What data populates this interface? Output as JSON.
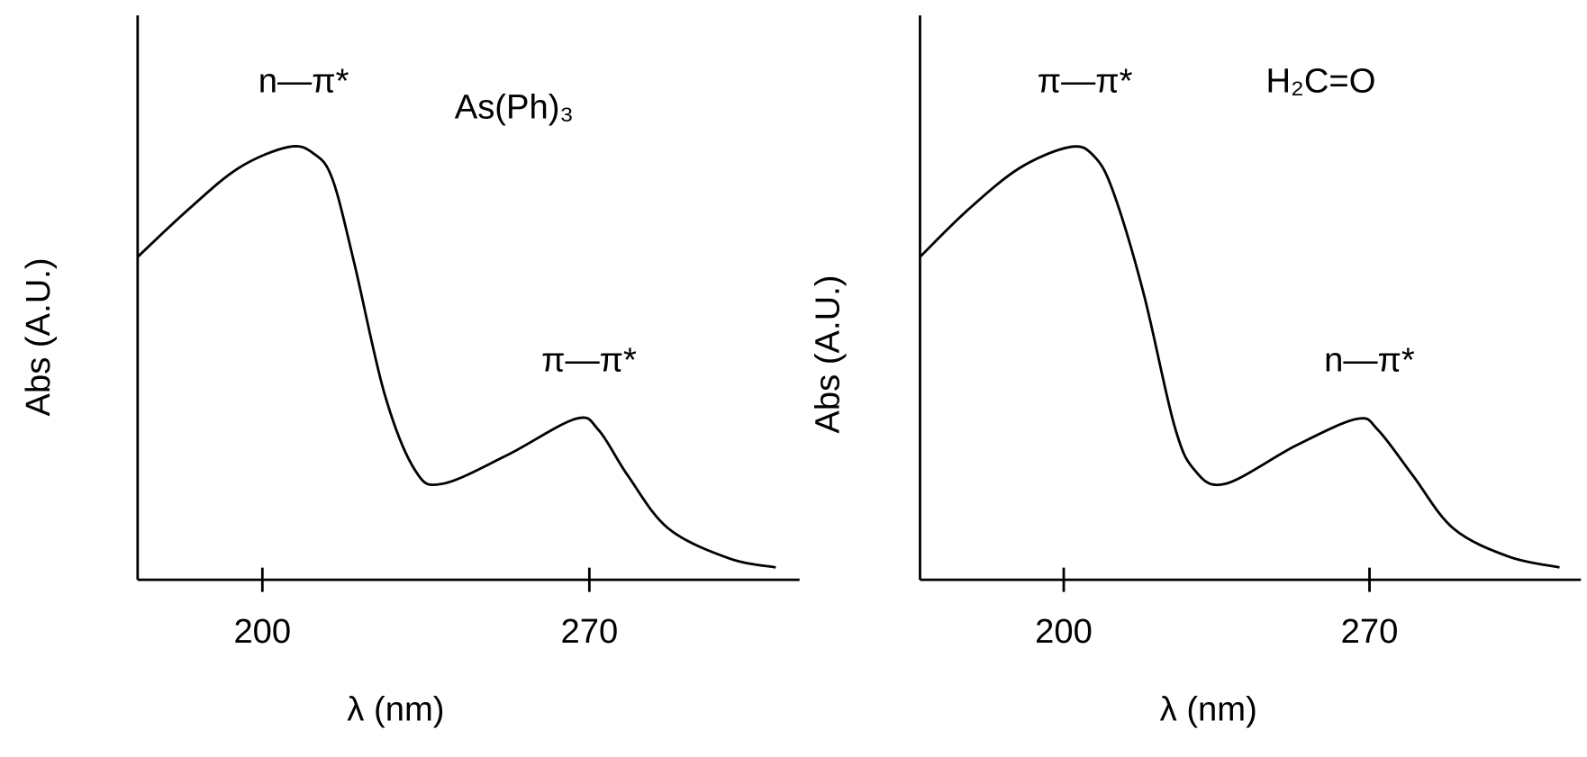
{
  "chart_data": [
    {
      "type": "line",
      "xlabel": "λ (nm)",
      "ylabel": "Abs (A.U.)",
      "annotations": [
        "n—π*",
        "π—π*",
        "As(Ph)₃"
      ],
      "x": [
        173.3,
        184,
        195,
        205.7,
        211,
        215,
        219.7,
        226.2,
        232.7,
        238.5,
        252.2,
        267,
        272,
        278.2,
        286.9,
        299.9,
        309.9
      ],
      "series": [
        {
          "color": "#000000",
          "values": [
            57.2,
            65.5,
            73,
            76.7,
            75.5,
            71,
            56,
            32.8,
            19.4,
            17,
            22,
            28.5,
            26.5,
            18.5,
            9.1,
            3.8,
            2.2
          ]
        }
      ],
      "xlim": [
        173.3,
        315
      ],
      "ylim": [
        0,
        100
      ],
      "xticks": [
        200,
        270
      ]
    },
    {
      "type": "line",
      "xlabel": "λ (nm)",
      "ylabel": "Abs (A.U.)",
      "annotations": [
        "π—π*",
        "n—π*",
        "H₂C=O"
      ],
      "x": [
        167.1,
        178,
        190,
        201.6,
        207,
        211.4,
        218.3,
        225.3,
        230,
        237,
        253.2,
        267.1,
        272,
        279.9,
        289.2,
        301.9,
        313.5
      ],
      "series": [
        {
          "color": "#000000",
          "values": [
            57.2,
            65.5,
            73,
            76.7,
            75,
            68.6,
            50.7,
            27.4,
            19.4,
            17,
            23.8,
            28.5,
            26.5,
            18.5,
            9.1,
            4.1,
            2.2
          ]
        }
      ],
      "xlim": [
        167.1,
        318.4
      ],
      "ylim": [
        0,
        100
      ],
      "xticks": [
        200,
        270
      ]
    }
  ]
}
